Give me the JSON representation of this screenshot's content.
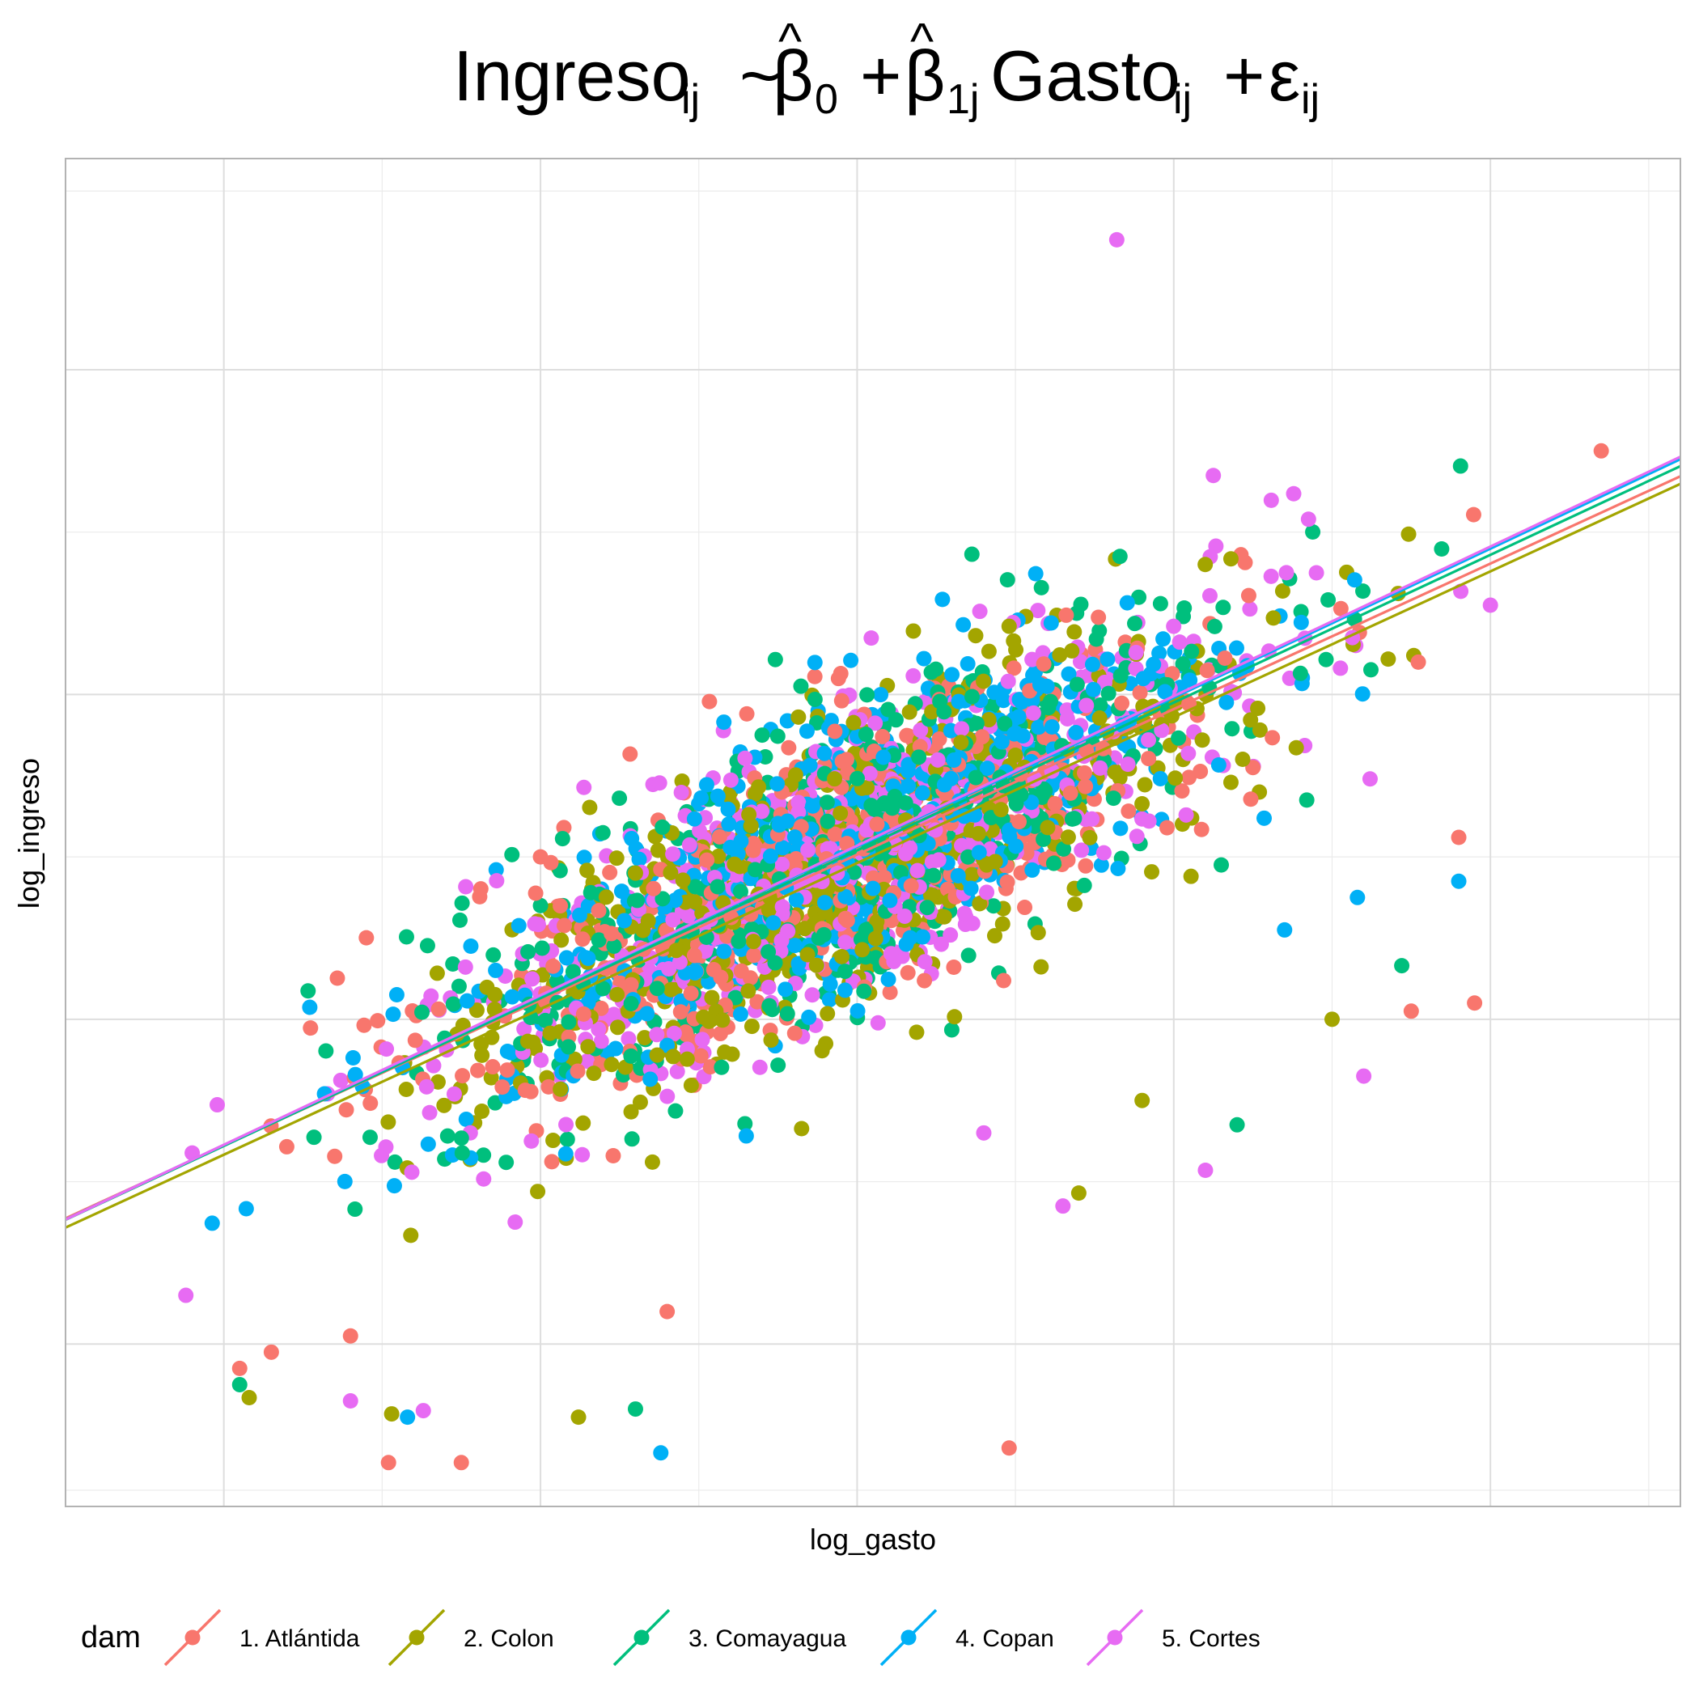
{
  "chart_data": {
    "type": "scatter",
    "title": {
      "main": "Ingreso",
      "sub_ij": "ij",
      "tilde": "~",
      "beta": "β",
      "hat": "^",
      "sub_0": "0",
      "plus": "+",
      "sub_1j": "1j",
      "gasto": "Gasto",
      "epsilon": "ε"
    },
    "xlabel": "log_gasto",
    "ylabel": "log_ingreso",
    "xlim": [
      6.5,
      11.6
    ],
    "ylim": [
      5.0,
      13.3
    ],
    "x_gridlines": [
      7,
      8,
      9,
      10,
      11
    ],
    "x_minor_gridlines": [
      7.5,
      8.5,
      9.5,
      10.5,
      11.5
    ],
    "y_gridlines": [
      6,
      8,
      10,
      12
    ],
    "y_minor_gridlines": [
      5.1,
      7,
      9,
      11,
      13.1
    ],
    "grid": true,
    "legend": {
      "title": "dam",
      "position": "bottom-left"
    },
    "colors": {
      "1. Atlántida": "#F8766D",
      "2. Colon": "#A3A500",
      "3. Comayagua": "#00BF7D",
      "4. Copan": "#00B0F6",
      "5. Cortes": "#E76BF3"
    },
    "series": [
      {
        "name": "1. Atlántida",
        "fit": {
          "intercept": 0.95,
          "slope": 0.896
        },
        "outliers": [
          [
            11.35,
            11.5
          ],
          [
            7.52,
            5.27
          ],
          [
            7.75,
            5.27
          ],
          [
            9.48,
            5.36
          ],
          [
            10.25,
            9.55
          ],
          [
            10.9,
            9.12
          ],
          [
            10.95,
            8.1
          ],
          [
            10.75,
            8.05
          ],
          [
            8.0,
            9.0
          ],
          [
            7.4,
            6.05
          ],
          [
            7.05,
            5.85
          ],
          [
            7.15,
            5.95
          ],
          [
            8.4,
            6.2
          ]
        ]
      },
      {
        "name": "2. Colon",
        "fit": {
          "intercept": 0.88,
          "slope": 0.898
        },
        "outliers": [
          [
            9.48,
            10.42
          ],
          [
            7.08,
            5.67
          ],
          [
            7.53,
            5.57
          ],
          [
            8.12,
            5.55
          ],
          [
            8.3,
            8.9
          ],
          [
            8.6,
            9.4
          ],
          [
            8.7,
            9.3
          ],
          [
            10.5,
            8.0
          ],
          [
            9.9,
            7.5
          ],
          [
            9.7,
            6.93
          ]
        ]
      },
      {
        "name": "3. Comayagua",
        "fit": {
          "intercept": 0.85,
          "slope": 0.91
        },
        "outliers": [
          [
            9.83,
            10.85
          ],
          [
            10.03,
            10.48
          ],
          [
            10.12,
            10.18
          ],
          [
            8.7,
            9.75
          ],
          [
            10.4,
            10.13
          ],
          [
            10.72,
            8.33
          ],
          [
            10.42,
            9.35
          ],
          [
            7.05,
            5.75
          ],
          [
            8.0,
            8.7
          ],
          [
            10.15,
            8.95
          ],
          [
            10.2,
            7.35
          ],
          [
            8.3,
            5.6
          ]
        ]
      },
      {
        "name": "4. Copan",
        "fit": {
          "intercept": 0.8,
          "slope": 0.918
        },
        "outliers": [
          [
            8.98,
            10.21
          ],
          [
            8.38,
            5.33
          ],
          [
            7.86,
            8.92
          ],
          [
            7.78,
            8.45
          ],
          [
            10.35,
            8.55
          ],
          [
            10.58,
            8.75
          ],
          [
            9.6,
            10.05
          ],
          [
            10.9,
            8.85
          ],
          [
            8.78,
            9.22
          ],
          [
            7.58,
            5.55
          ]
        ]
      },
      {
        "name": "5. Cortes",
        "fit": {
          "intercept": 0.78,
          "slope": 0.921
        },
        "outliers": [
          [
            9.82,
            12.8
          ],
          [
            11.0,
            10.55
          ],
          [
            9.88,
            10.16
          ],
          [
            9.92,
            9.72
          ],
          [
            10.62,
            9.48
          ],
          [
            9.2,
            9.78
          ],
          [
            7.4,
            5.65
          ],
          [
            6.88,
            6.3
          ],
          [
            7.63,
            5.59
          ],
          [
            9.4,
            7.3
          ],
          [
            9.65,
            6.85
          ],
          [
            10.1,
            7.07
          ],
          [
            10.6,
            7.65
          ]
        ]
      }
    ]
  }
}
